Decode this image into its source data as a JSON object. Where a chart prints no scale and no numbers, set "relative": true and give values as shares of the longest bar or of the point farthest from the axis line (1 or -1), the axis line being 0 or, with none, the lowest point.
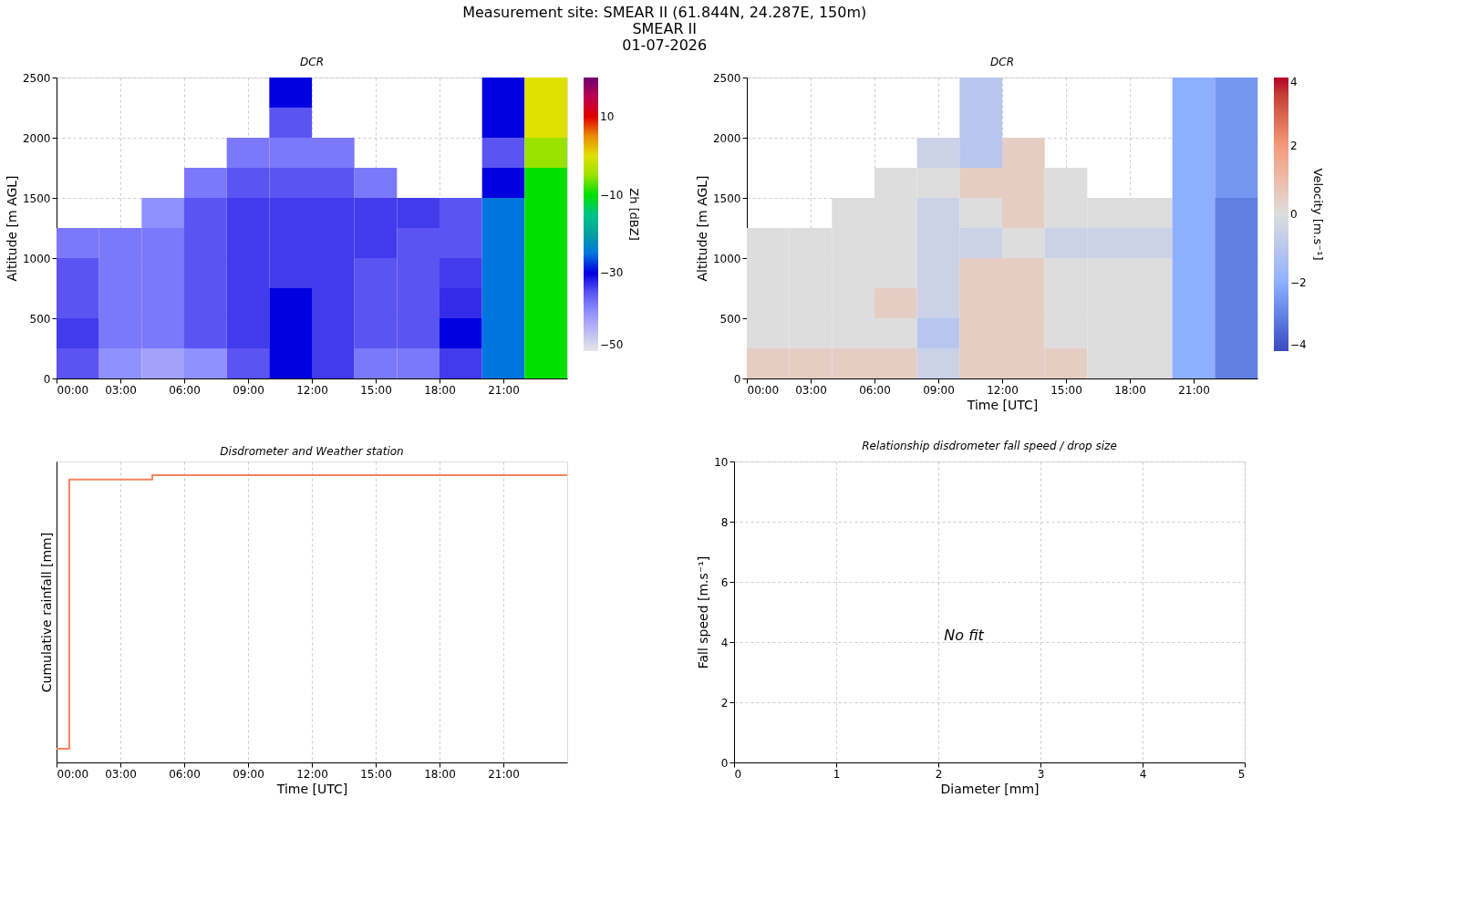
{
  "chart_data": [
    {
      "type": "heatmap",
      "title": "DCR",
      "ylabel": "Altitude [m AGL]",
      "clabel": "Zh [dBZ]",
      "annotations": [
        "Measurement site: SMEAR II (61.844N, 24.287E, 150m)",
        "SMEAR II",
        "01-07-2026"
      ],
      "xlim": [
        0,
        24
      ],
      "xticks": [
        {
          "value": 0,
          "label": "00:00"
        },
        {
          "value": 3,
          "label": "03:00"
        },
        {
          "value": 6,
          "label": "06:00"
        },
        {
          "value": 9,
          "label": "09:00"
        },
        {
          "value": 12,
          "label": "12:00"
        },
        {
          "value": 15,
          "label": "15:00"
        },
        {
          "value": 18,
          "label": "18:00"
        },
        {
          "value": 21,
          "label": "21:00"
        }
      ],
      "ylim": [
        0,
        2500
      ],
      "yticks": [
        0,
        500,
        1000,
        1500,
        2000,
        2500
      ],
      "clim": [
        -50,
        20
      ],
      "cticks": [
        -50,
        -30,
        -10,
        10
      ],
      "colors": [
        "#e6e6e6",
        "#9090ff",
        "#0000e0",
        "#00a0a0",
        "#00e000",
        "#e0e000",
        "#e00000",
        "#700070"
      ],
      "grid": true,
      "cells": [
        [
          null,
          null,
          null,
          null,
          null,
          -30,
          null,
          null,
          null,
          null,
          -30,
          0
        ],
        [
          null,
          null,
          null,
          null,
          null,
          -35,
          null,
          null,
          null,
          null,
          -30,
          0
        ],
        [
          null,
          null,
          null,
          null,
          -38,
          -38,
          -38,
          null,
          null,
          null,
          -35,
          -5
        ],
        [
          null,
          null,
          null,
          -38,
          -35,
          -35,
          -35,
          -38,
          null,
          null,
          -30,
          -10
        ],
        [
          null,
          null,
          -40,
          -35,
          -33,
          -33,
          -33,
          -33,
          -33,
          -35,
          -25,
          -10
        ],
        [
          -38,
          -38,
          -38,
          -35,
          -33,
          -33,
          -33,
          -33,
          -35,
          -35,
          -25,
          -10
        ],
        [
          -35,
          -38,
          -38,
          -35,
          -33,
          -33,
          -33,
          -35,
          -35,
          -33,
          -25,
          -10
        ],
        [
          -35,
          -38,
          -38,
          -35,
          -33,
          -30,
          -33,
          -35,
          -35,
          -32,
          -25,
          -10
        ],
        [
          -33,
          -38,
          -38,
          -35,
          -33,
          -30,
          -33,
          -35,
          -35,
          -30,
          -25,
          -10
        ],
        [
          -35,
          -40,
          -42,
          -40,
          -35,
          -30,
          -33,
          -38,
          -38,
          -33,
          -25,
          -10
        ]
      ]
    },
    {
      "type": "heatmap",
      "title": "DCR",
      "xlabel": "Time [UTC]",
      "ylabel": "Altitude [m AGL]",
      "clabel": "Velocity [m.s⁻¹]",
      "xlim": [
        0,
        24
      ],
      "xticks": [
        {
          "value": 0,
          "label": "00:00"
        },
        {
          "value": 3,
          "label": "03:00"
        },
        {
          "value": 6,
          "label": "06:00"
        },
        {
          "value": 9,
          "label": "09:00"
        },
        {
          "value": 12,
          "label": "12:00"
        },
        {
          "value": 15,
          "label": "15:00"
        },
        {
          "value": 18,
          "label": "18:00"
        },
        {
          "value": 21,
          "label": "21:00"
        }
      ],
      "ylim": [
        0,
        2500
      ],
      "yticks": [
        0,
        500,
        1000,
        1500,
        2000,
        2500
      ],
      "clim": [
        -4,
        4
      ],
      "cticks": [
        -4,
        -2,
        0,
        2,
        4
      ],
      "colors": [
        "#3a4cc0",
        "#8db0fe",
        "#dddddd",
        "#f49a7b",
        "#b40426"
      ],
      "grid": true,
      "cells": [
        [
          null,
          null,
          null,
          null,
          null,
          -1,
          null,
          null,
          null,
          null,
          -2,
          -2.5
        ],
        [
          null,
          null,
          null,
          null,
          null,
          -1,
          null,
          null,
          null,
          null,
          -2,
          -2.5
        ],
        [
          null,
          null,
          null,
          null,
          -0.5,
          -1,
          0.5,
          null,
          null,
          null,
          -2,
          -2.5
        ],
        [
          null,
          null,
          null,
          0,
          0,
          0.5,
          0.5,
          0,
          null,
          null,
          -2,
          -2.5
        ],
        [
          null,
          null,
          0,
          0,
          -0.5,
          0,
          0.5,
          0,
          0,
          0,
          -2,
          -3
        ],
        [
          0,
          0,
          0,
          0,
          -0.5,
          -0.5,
          0,
          -0.5,
          -0.5,
          -0.5,
          -2,
          -3
        ],
        [
          0,
          0,
          0,
          0,
          -0.5,
          0.5,
          0.5,
          0,
          0,
          0,
          -2,
          -3
        ],
        [
          0,
          0,
          0,
          0.5,
          -0.5,
          0.5,
          0.5,
          0,
          0,
          0,
          -2,
          -3
        ],
        [
          0,
          0,
          0,
          0,
          -1,
          0.5,
          0.5,
          0,
          0,
          0,
          -2,
          -3
        ],
        [
          0.5,
          0.5,
          0.5,
          0.5,
          -0.5,
          0.5,
          0.5,
          0.5,
          0,
          0,
          -2,
          -3
        ]
      ]
    },
    {
      "type": "step",
      "title": "Disdrometer and Weather station",
      "xlabel": "Time [UTC]",
      "ylabel": "Cumulative rainfall [mm]",
      "relative": true,
      "tick_labels": "x",
      "xlim": [
        0,
        24
      ],
      "xticks": [
        {
          "value": 0,
          "label": "00:00"
        },
        {
          "value": 3,
          "label": "03:00"
        },
        {
          "value": 6,
          "label": "06:00"
        },
        {
          "value": 9,
          "label": "09:00"
        },
        {
          "value": 12,
          "label": "12:00"
        },
        {
          "value": 15,
          "label": "15:00"
        },
        {
          "value": 18,
          "label": "18:00"
        },
        {
          "value": 21,
          "label": "21:00"
        }
      ],
      "grid": true,
      "series": [
        {
          "color": "#f4845f",
          "x": [
            0,
            0.6,
            4.5,
            24
          ],
          "values": [
            0,
            0.984,
            1,
            1
          ]
        }
      ]
    },
    {
      "type": "scatter",
      "title": "Relationship disdrometer fall speed / drop size",
      "xlabel": "Diameter [mm]",
      "ylabel": "Fall speed [m.s⁻¹]",
      "xlim": [
        0,
        5
      ],
      "xticks": [
        0,
        1,
        2,
        3,
        4,
        5
      ],
      "ylim": [
        0,
        10
      ],
      "yticks": [
        0,
        2,
        4,
        6,
        8,
        10
      ],
      "grid": true,
      "annotations": [
        "No fit"
      ]
    }
  ]
}
